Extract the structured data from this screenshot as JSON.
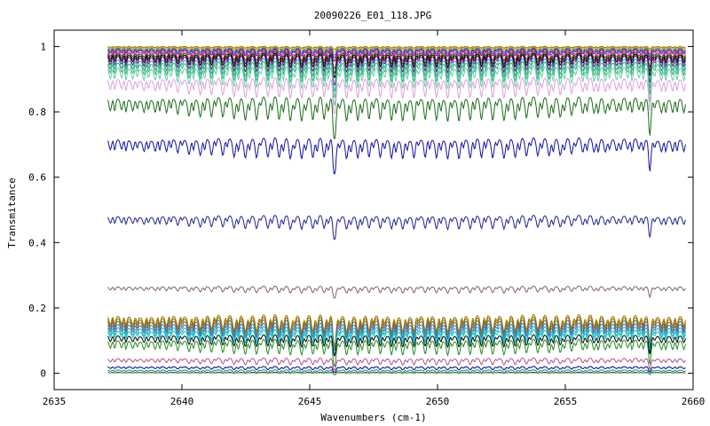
{
  "chart_data": {
    "type": "line",
    "title": "20090226_E01_118.JPG",
    "xlabel": "Wavenumbers (cm-1)",
    "ylabel": "Transmitance",
    "xlim": [
      2635,
      2660
    ],
    "ylim": [
      -0.05,
      1.05
    ],
    "x_ticks": [
      2635,
      2640,
      2645,
      2650,
      2655,
      2660
    ],
    "x_tick_labels": [
      "2635",
      "2640",
      "2645",
      "2650",
      "2655",
      "2660"
    ],
    "y_ticks": [
      0,
      0.2,
      0.4,
      0.6,
      0.8,
      1
    ],
    "y_tick_labels": [
      "0",
      "0.2",
      "0.4",
      "0.6",
      "0.8",
      "1"
    ],
    "x_range": [
      2637.1,
      2659.7
    ],
    "grid": false,
    "legend": false,
    "series": [
      {
        "color": "#808000",
        "base": 1.0,
        "depth": 0.005
      },
      {
        "color": "#ff8c00",
        "base": 0.998,
        "depth": 0.008
      },
      {
        "color": "#2e8b57",
        "base": 0.995,
        "depth": 0.012
      },
      {
        "color": "#4169e1",
        "base": 0.992,
        "depth": 0.015
      },
      {
        "color": "#800080",
        "base": 0.99,
        "depth": 0.02
      },
      {
        "color": "#c71585",
        "base": 0.985,
        "depth": 0.03
      },
      {
        "color": "#006400",
        "base": 0.98,
        "depth": 0.035
      },
      {
        "color": "#000000",
        "base": 0.975,
        "depth": 0.04
      },
      {
        "color": "#8b008b",
        "base": 0.97,
        "depth": 0.05
      },
      {
        "color": "#20b2aa",
        "base": 0.96,
        "depth": 0.055
      },
      {
        "color": "#3cb371",
        "base": 0.95,
        "depth": 0.06
      },
      {
        "color": "#66cdaa",
        "base": 0.935,
        "depth": 0.065
      },
      {
        "color": "#dda0dd",
        "base": 0.9,
        "depth": 0.06
      },
      {
        "color": "#1a6b1a",
        "base": 0.84,
        "depth": 0.07
      },
      {
        "color": "#1010a0",
        "base": 0.715,
        "depth": 0.06
      },
      {
        "color": "#202090",
        "base": 0.48,
        "depth": 0.04
      },
      {
        "color": "#806070",
        "base": 0.265,
        "depth": 0.02
      },
      {
        "color": "#808000",
        "base": 0.175,
        "depth": 0.05
      },
      {
        "color": "#cc5500",
        "base": 0.168,
        "depth": 0.05
      },
      {
        "color": "#2e8b57",
        "base": 0.16,
        "depth": 0.05
      },
      {
        "color": "#6a5acd",
        "base": 0.15,
        "depth": 0.045
      },
      {
        "color": "#20b2aa",
        "base": 0.14,
        "depth": 0.045
      },
      {
        "color": "#00ced1",
        "base": 0.13,
        "depth": 0.04
      },
      {
        "color": "#000000",
        "base": 0.115,
        "depth": 0.035
      },
      {
        "color": "#228b22",
        "base": 0.1,
        "depth": 0.045
      },
      {
        "color": "#b05090",
        "base": 0.045,
        "depth": 0.02
      },
      {
        "color": "#000080",
        "base": 0.02,
        "depth": 0.01
      },
      {
        "color": "#008b8b",
        "base": 0.01,
        "depth": 0.008
      },
      {
        "color": "#0000cd",
        "base": 0.003,
        "depth": 0.004
      },
      {
        "color": "#9acd32",
        "base": 0.001,
        "depth": 0.002
      }
    ]
  }
}
